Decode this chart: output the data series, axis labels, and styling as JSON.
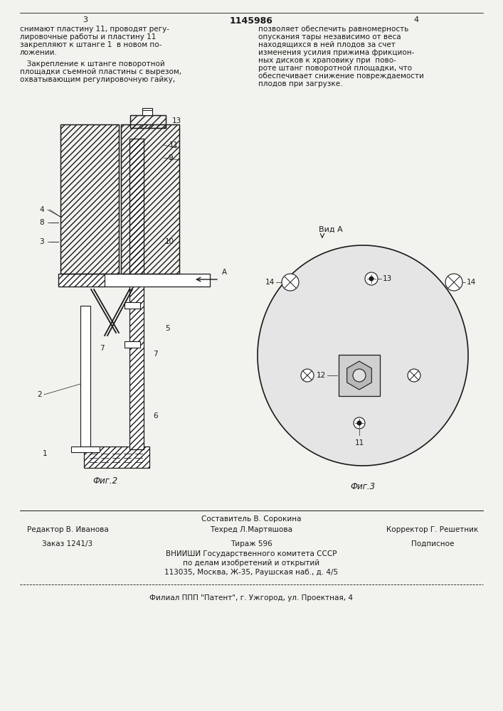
{
  "page_number_left": "3",
  "page_number_center": "1145986",
  "page_number_right": "4",
  "text_left_col": [
    "снимают пластину 11, проводят регу-",
    "лировочные работы и пластину 11",
    "закрепляют к штанге 1  в новом по-",
    "ложении."
  ],
  "text_left_para": [
    "   Закрепление к штанге поворотной",
    "площадки съемной пластины с вырезом,",
    "охватывающим регулировочную гайку,"
  ],
  "text_right_col": [
    "позволяет обеспечить равномерность",
    "опускания тары независимо от веса",
    "находящихся в ней плодов за счет",
    "изменения усилия прижима фрикцион-",
    "ных дисков к храповику при  пово-",
    "роте штанг поворотной площадки, что",
    "обеспечивает снижение повреждаемости",
    "плодов при загрузке."
  ],
  "fig2_label": "Фиг.2",
  "fig3_label": "Фиг.3",
  "vid_label": "Вид А",
  "editor_label": "Редактор В. Иванова",
  "composer_label": "Составитель В. Сорокина",
  "techred_label": "Техред Л.Мартяшова",
  "corrector_label": "Корректор Г. Решетник",
  "order_label": "Заказ 1241/3",
  "tiraj_label": "Тираж 596",
  "podpis_label": "Подписное",
  "vniishi_line1": "ВНИИШИ Государственного комитета СССР",
  "vniishi_line2": "по делам изобретений и открытий",
  "vniishi_line3": "113035, Москва, Ж-35, Раушская наб., д. 4/5",
  "filial_line": "Филиал ППП \"Патент\", г. Ужгород, ул. Проектная, 4",
  "bg_color": "#f2f2ee",
  "text_color": "#1a1a1a",
  "line_color": "#1a1a1a"
}
